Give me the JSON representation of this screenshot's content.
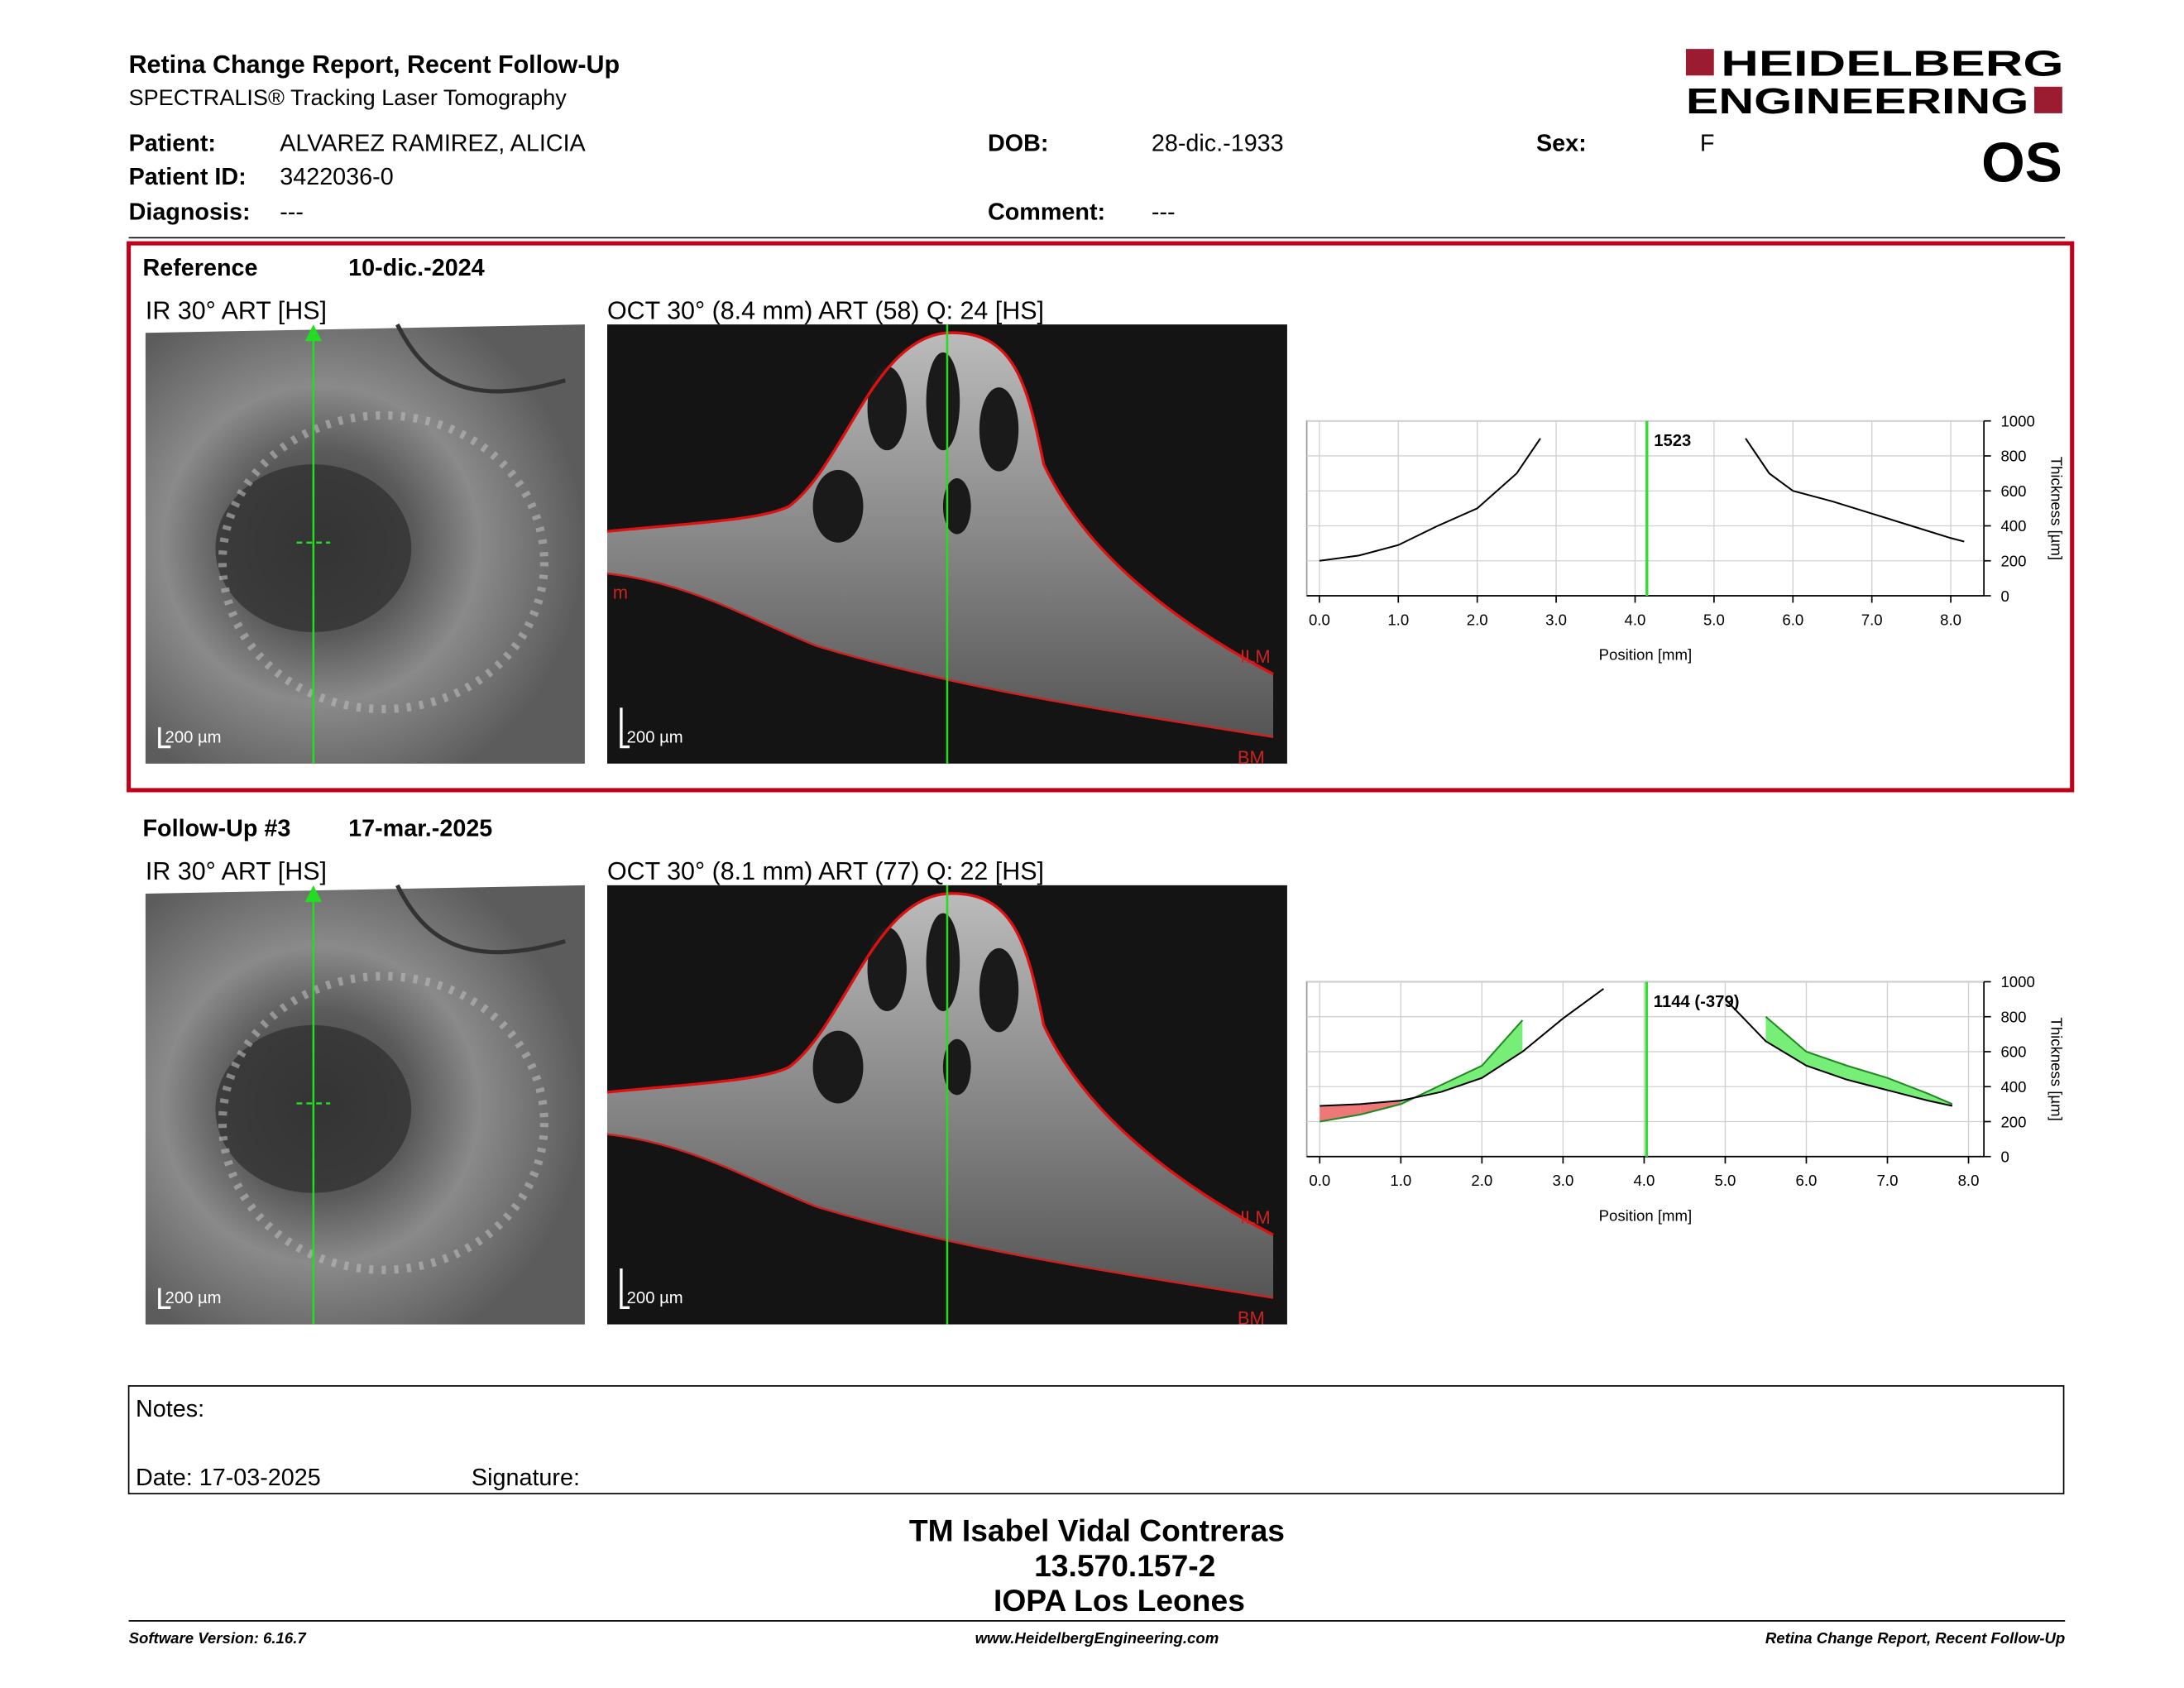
{
  "header": {
    "title": "Retina Change Report, Recent Follow-Up",
    "subtitle": "SPECTRALIS® Tracking Laser Tomography",
    "logo": [
      "HEIDELBERG",
      "ENGINEERING"
    ],
    "eye": "OS"
  },
  "patient": [
    {
      "label": "Patient:",
      "value": "ALVAREZ RAMIREZ, ALICIA"
    },
    {
      "label": "DOB:",
      "value": "28-dic.-1933"
    },
    {
      "label": "Sex:",
      "value": "F"
    },
    {
      "label": "Patient ID:",
      "value": "3422036-0"
    },
    {
      "label": "Diagnosis:",
      "value": "---"
    },
    {
      "label": "Comment:",
      "value": "---"
    }
  ],
  "exams": [
    {
      "label": "Reference",
      "date": "10-dic.-2024",
      "ir_title": "IR 30° ART [HS]",
      "oct_title": "OCT 30° (8.4 mm) ART (58) Q: 24 [HS]",
      "ir_scale": "200 µm",
      "oct_scale": "200 µm",
      "oct_layers": [
        "ILM",
        "BM"
      ],
      "oct_marker": "m",
      "chart": {
        "type": "line",
        "x_label": "Position [mm]",
        "y_label": "Thickness [µm]",
        "xlim": [
          -0.16,
          8.42
        ],
        "ylim": [
          0,
          1000
        ],
        "xticks": [
          {
            "value": 0,
            "label": "0.0"
          },
          {
            "value": 1,
            "label": "1.0"
          },
          {
            "value": 2,
            "label": "2.0"
          },
          {
            "value": 3,
            "label": "3.0"
          },
          {
            "value": 4,
            "label": "4.0"
          },
          {
            "value": 5,
            "label": "5.0"
          },
          {
            "value": 6,
            "label": "6.0"
          },
          {
            "value": 7,
            "label": "7.0"
          },
          {
            "value": 8,
            "label": "8.0"
          }
        ],
        "yticks": [
          0,
          200,
          400,
          600,
          800,
          1000
        ],
        "grid": true,
        "x": [
          0,
          0.5,
          1,
          1.5,
          2,
          2.5,
          2.8,
          4.15,
          5.4,
          5.7,
          6,
          6.5,
          7,
          7.5,
          8,
          8.17
        ],
        "series": [
          {
            "color": "#000000",
            "values": [
              200,
              230,
              290,
              400,
              500,
              700,
              900,
              null,
              900,
              700,
              600,
              540,
              470,
              400,
              330,
              310
            ]
          }
        ],
        "cursor_x": 4.15,
        "cursor_color": "#33dd33",
        "cursor_value": 1523
      }
    },
    {
      "label": "Follow-Up #3",
      "date": "17-mar.-2025",
      "ir_title": "IR 30° ART [HS]",
      "oct_title": "OCT 30° (8.1 mm) ART (77) Q: 22 [HS]",
      "ir_scale": "200 µm",
      "oct_scale": "200 µm",
      "oct_layers": [
        "ILM",
        "BM"
      ],
      "chart": {
        "type": "change",
        "x_label": "Position [mm]",
        "y_label": "Thickness [µm]",
        "xlim": [
          -0.16,
          8.19
        ],
        "ylim": [
          0,
          1000
        ],
        "xticks": [
          {
            "value": 0,
            "label": "0.0"
          },
          {
            "value": 1,
            "label": "1.0"
          },
          {
            "value": 2,
            "label": "2.0"
          },
          {
            "value": 3,
            "label": "3.0"
          },
          {
            "value": 4,
            "label": "4.0"
          },
          {
            "value": 5,
            "label": "5.0"
          },
          {
            "value": 6,
            "label": "6.0"
          },
          {
            "value": 7,
            "label": "7.0"
          },
          {
            "value": 8,
            "label": "8.0"
          }
        ],
        "yticks": [
          0,
          200,
          400,
          600,
          800,
          1000
        ],
        "grid": true,
        "x": [
          0,
          0.5,
          1,
          1.5,
          2,
          2.5,
          3,
          3.5,
          4.0,
          5.0,
          5.5,
          6,
          6.5,
          7,
          7.5,
          7.8
        ],
        "series": [
          {
            "color": "#000000",
            "values": [
              290,
              300,
              320,
              370,
              450,
              600,
              790,
              960,
              null,
              900,
              660,
              520,
              440,
              380,
              320,
              290
            ]
          },
          {
            "color": "#228822",
            "values": [
              200,
              240,
              300,
              410,
              520,
              780,
              null,
              null,
              null,
              null,
              800,
              600,
              520,
              450,
              360,
              300
            ]
          }
        ],
        "fill_colors": {
          "thinner": "#77ee77",
          "thicker": "#ee7777"
        },
        "cursor_x": 4.03,
        "cursor_color": "#33dd33",
        "cursor_label": "1144 (-379)"
      }
    }
  ],
  "notes": {
    "label": "Notes:",
    "date": "Date: 17-03-2025",
    "signature": "Signature:"
  },
  "signer": [
    "TM Isabel Vidal Contreras",
    "13.570.157-2",
    "IOPA Los Leones"
  ],
  "footer": {
    "left": "Software Version: 6.16.7",
    "center": "www.HeidelbergEngineering.com",
    "right": "Retina Change Report, Recent Follow-Up"
  }
}
